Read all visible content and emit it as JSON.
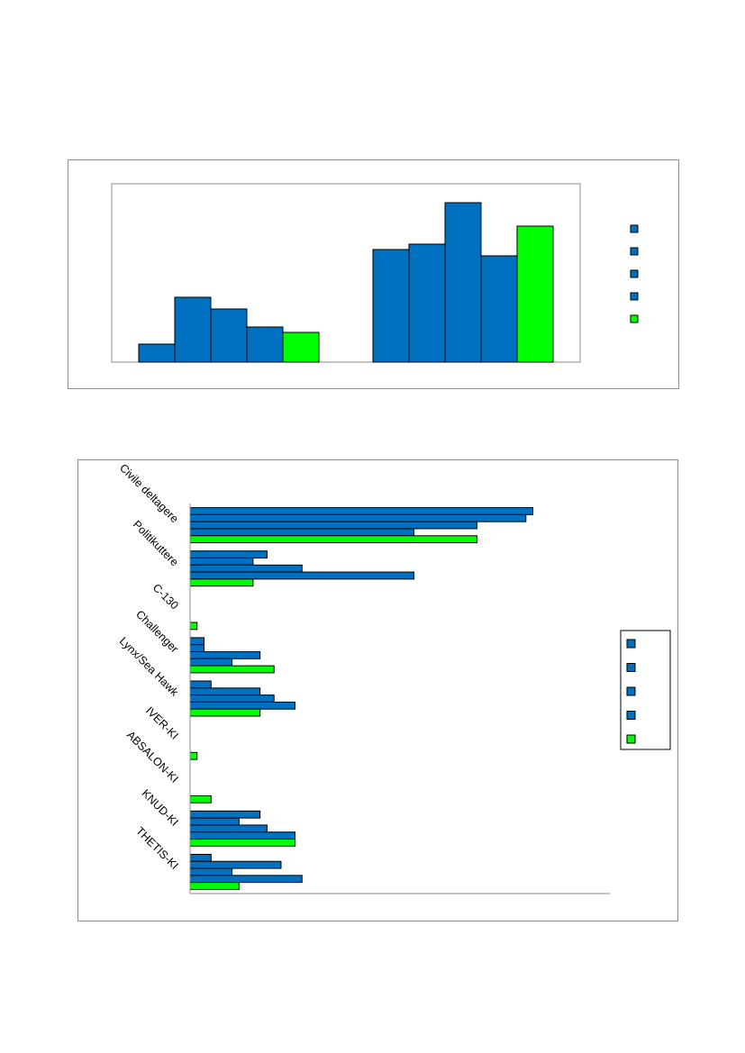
{
  "colors": {
    "series_blue": "#0070C0",
    "series_green": "#00FF00",
    "bar_stroke": "#000000"
  },
  "chart_data": [
    {
      "type": "bar",
      "orientation": "vertical",
      "categories": [
        "",
        ""
      ],
      "series": [
        {
          "values": [
            20,
            125
          ],
          "color": "#0070C0"
        },
        {
          "values": [
            72,
            131
          ],
          "color": "#0070C0"
        },
        {
          "values": [
            59,
            177
          ],
          "color": "#0070C0"
        },
        {
          "values": [
            39,
            118
          ],
          "color": "#0070C0"
        },
        {
          "values": [
            33,
            151
          ],
          "color": "#00FF00"
        }
      ],
      "ylim": [
        0,
        198
      ],
      "grid": false,
      "legend_position": "right",
      "title": "",
      "xlabel": "",
      "ylabel": ""
    },
    {
      "type": "bar",
      "orientation": "horizontal",
      "categories": [
        "Civile deltagere",
        "Politikuttere",
        "C-130",
        "Challenger",
        "Lynx/Sea Hawk",
        "IVER-KI",
        "ABSALON-KI",
        "KNUD-KI",
        "THETIS-KI"
      ],
      "series": [
        {
          "values": [
            98,
            22,
            0,
            4,
            6,
            0,
            0,
            20,
            6
          ],
          "color": "#0070C0"
        },
        {
          "values": [
            96,
            18,
            0,
            4,
            20,
            0,
            0,
            14,
            26
          ],
          "color": "#0070C0"
        },
        {
          "values": [
            82,
            32,
            0,
            20,
            24,
            0,
            0,
            22,
            12
          ],
          "color": "#0070C0"
        },
        {
          "values": [
            64,
            64,
            0,
            12,
            30,
            0,
            0,
            30,
            32
          ],
          "color": "#0070C0"
        },
        {
          "values": [
            82,
            18,
            2,
            24,
            20,
            2,
            6,
            30,
            14
          ],
          "color": "#00FF00"
        }
      ],
      "xlim": [
        0,
        120
      ],
      "grid": false,
      "legend_position": "right",
      "title": "",
      "xlabel": "",
      "ylabel": ""
    }
  ]
}
